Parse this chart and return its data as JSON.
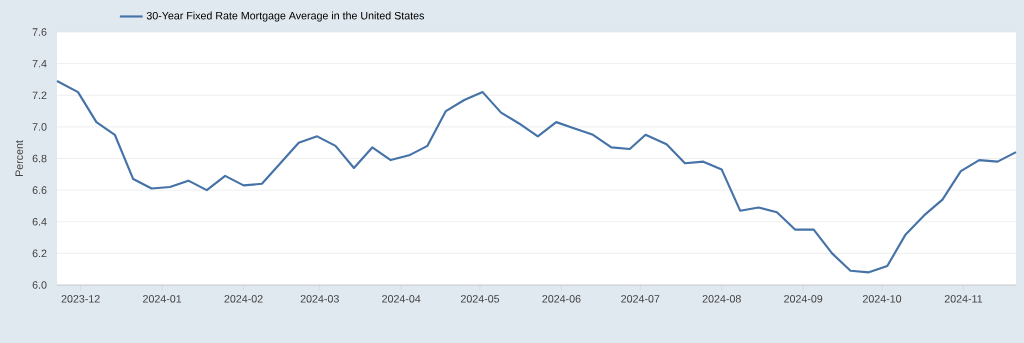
{
  "chart_data": {
    "type": "line",
    "ylabel": "Percent",
    "legend": "top left",
    "grid": "y",
    "marker": "none",
    "line_style": "solid",
    "x": [
      "2023-11-22",
      "2023-11-30",
      "2023-12-07",
      "2023-12-14",
      "2023-12-21",
      "2023-12-28",
      "2024-01-04",
      "2024-01-11",
      "2024-01-18",
      "2024-01-25",
      "2024-02-01",
      "2024-02-08",
      "2024-02-15",
      "2024-02-22",
      "2024-02-29",
      "2024-03-07",
      "2024-03-14",
      "2024-03-21",
      "2024-03-28",
      "2024-04-04",
      "2024-04-11",
      "2024-04-18",
      "2024-04-25",
      "2024-05-02",
      "2024-05-09",
      "2024-05-16",
      "2024-05-23",
      "2024-05-30",
      "2024-06-06",
      "2024-06-13",
      "2024-06-20",
      "2024-06-27",
      "2024-07-03",
      "2024-07-11",
      "2024-07-18",
      "2024-07-25",
      "2024-08-01",
      "2024-08-08",
      "2024-08-15",
      "2024-08-22",
      "2024-08-29",
      "2024-09-05",
      "2024-09-12",
      "2024-09-19",
      "2024-09-26",
      "2024-10-03",
      "2024-10-10",
      "2024-10-17",
      "2024-10-24",
      "2024-10-31",
      "2024-11-07",
      "2024-11-14",
      "2024-11-21"
    ],
    "series": [
      {
        "name": "30-Year Fixed Rate Mortgage Average in the United States",
        "color": "#4572a7",
        "values": [
          7.29,
          7.22,
          7.03,
          6.95,
          6.67,
          6.61,
          6.62,
          6.66,
          6.6,
          6.69,
          6.63,
          6.64,
          6.77,
          6.9,
          6.94,
          6.88,
          6.74,
          6.87,
          6.79,
          6.82,
          6.88,
          7.1,
          7.17,
          7.22,
          7.09,
          7.02,
          6.94,
          7.03,
          6.99,
          6.95,
          6.87,
          6.86,
          6.95,
          6.89,
          6.77,
          6.78,
          6.73,
          6.47,
          6.49,
          6.46,
          6.35,
          6.35,
          6.2,
          6.09,
          6.08,
          6.12,
          6.32,
          6.44,
          6.54,
          6.72,
          6.79,
          6.78,
          6.84
        ]
      }
    ],
    "xlim": [
      "2023-11-22",
      "2024-11-21"
    ],
    "xticks": [
      {
        "value": "2023-12",
        "label": "2023-12"
      },
      {
        "value": "2024-01",
        "label": "2024-01"
      },
      {
        "value": "2024-02",
        "label": "2024-02"
      },
      {
        "value": "2024-03",
        "label": "2024-03"
      },
      {
        "value": "2024-04",
        "label": "2024-04"
      },
      {
        "value": "2024-05",
        "label": "2024-05"
      },
      {
        "value": "2024-06",
        "label": "2024-06"
      },
      {
        "value": "2024-07",
        "label": "2024-07"
      },
      {
        "value": "2024-08",
        "label": "2024-08"
      },
      {
        "value": "2024-09",
        "label": "2024-09"
      },
      {
        "value": "2024-10",
        "label": "2024-10"
      },
      {
        "value": "2024-11",
        "label": "2024-11"
      }
    ],
    "ylim": [
      6.0,
      7.6
    ],
    "yticks": [
      {
        "value": 6.0,
        "label": "6.0"
      },
      {
        "value": 6.2,
        "label": "6.2"
      },
      {
        "value": 6.4,
        "label": "6.4"
      },
      {
        "value": 6.6,
        "label": "6.6"
      },
      {
        "value": 6.8,
        "label": "6.8"
      },
      {
        "value": 7.0,
        "label": "7.0"
      },
      {
        "value": 7.2,
        "label": "7.2"
      },
      {
        "value": 7.4,
        "label": "7.4"
      },
      {
        "value": 7.6,
        "label": "7.6"
      }
    ]
  }
}
